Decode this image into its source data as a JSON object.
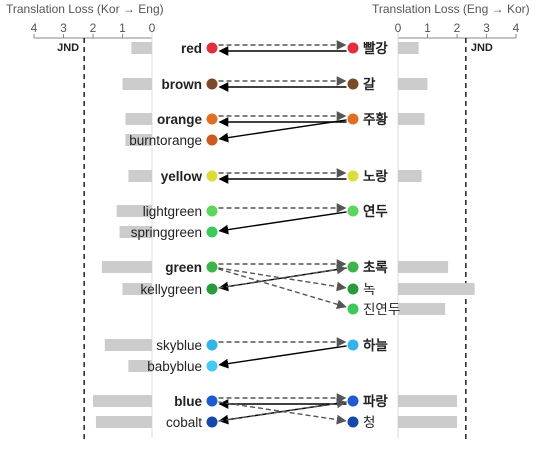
{
  "axes": {
    "left_title": "Translation Loss (Kor → Eng)",
    "right_title": "Translation Loss (Eng → Kor)",
    "left_ticks": [
      "4",
      "3",
      "2",
      "1",
      "0"
    ],
    "right_ticks": [
      "0",
      "1",
      "2",
      "3",
      "4"
    ],
    "jnd_label": "JND",
    "jnd_value": 2.3
  },
  "english_terms": [
    {
      "label": "red",
      "bold": true,
      "color": "#e0303c",
      "loss": 0.7
    },
    {
      "label": "brown",
      "bold": true,
      "color": "#7a4a2a",
      "loss": 1.0
    },
    {
      "label": "orange",
      "bold": true,
      "color": "#e07020",
      "loss": 0.9
    },
    {
      "label": "burntorange",
      "bold": false,
      "color": "#cc5a1e",
      "loss": 0.9
    },
    {
      "label": "yellow",
      "bold": true,
      "color": "#dcdc3a",
      "loss": 0.8
    },
    {
      "label": "lightgreen",
      "bold": false,
      "color": "#5cd65c",
      "loss": 1.2
    },
    {
      "label": "springgreen",
      "bold": false,
      "color": "#3cc85a",
      "loss": 1.1
    },
    {
      "label": "green",
      "bold": true,
      "color": "#3cb44b",
      "loss": 1.7
    },
    {
      "label": "kellygreen",
      "bold": false,
      "color": "#2a9a3a",
      "loss": 1.0
    },
    {
      "label": "skyblue",
      "bold": false,
      "color": "#32b4e6",
      "loss": 1.6
    },
    {
      "label": "babyblue",
      "bold": false,
      "color": "#46c8f0",
      "loss": 0.8
    },
    {
      "label": "blue",
      "bold": true,
      "color": "#1e5ad2",
      "loss": 2.0
    },
    {
      "label": "cobalt",
      "bold": false,
      "color": "#1448aa",
      "loss": 1.9
    }
  ],
  "korean_terms": [
    {
      "label": "빨강",
      "bold": true,
      "color": "#e0303c",
      "loss": 0.7
    },
    {
      "label": "갈",
      "bold": true,
      "color": "#7a4a2a",
      "loss": 1.0
    },
    {
      "label": "주황",
      "bold": true,
      "color": "#e07020",
      "loss": 0.9
    },
    {
      "label": "노랑",
      "bold": true,
      "color": "#dcdc3a",
      "loss": 0.8
    },
    {
      "label": "연두",
      "bold": true,
      "color": "#5cd65c",
      "loss": null
    },
    {
      "label": "초록",
      "bold": true,
      "color": "#3cb44b",
      "loss": 1.7
    },
    {
      "label": "녹",
      "bold": false,
      "color": "#2a9a3a",
      "loss": 2.6
    },
    {
      "label": "진연두",
      "bold": false,
      "color": "#3cc85a",
      "loss": 1.6
    },
    {
      "label": "하늘",
      "bold": true,
      "color": "#32b4e6",
      "loss": null
    },
    {
      "label": "파랑",
      "bold": true,
      "color": "#1e5ad2",
      "loss": 2.0
    },
    {
      "label": "청",
      "bold": false,
      "color": "#1448aa",
      "loss": 2.0
    }
  ],
  "kor_to_eng": [
    {
      "from": "빨강",
      "to": "red"
    },
    {
      "from": "갈",
      "to": "brown"
    },
    {
      "from": "주황",
      "to": "orange"
    },
    {
      "from": "주황",
      "to": "burntorange"
    },
    {
      "from": "노랑",
      "to": "yellow"
    },
    {
      "from": "연두",
      "to": "springgreen"
    },
    {
      "from": "초록",
      "to": "kellygreen"
    },
    {
      "from": "하늘",
      "to": "babyblue"
    },
    {
      "from": "파랑",
      "to": "blue"
    },
    {
      "from": "파랑",
      "to": "cobalt"
    }
  ],
  "eng_to_kor": [
    {
      "from": "red",
      "to": "빨강"
    },
    {
      "from": "brown",
      "to": "갈"
    },
    {
      "from": "orange",
      "to": "주황"
    },
    {
      "from": "yellow",
      "to": "노랑"
    },
    {
      "from": "lightgreen",
      "to": "연두"
    },
    {
      "from": "green",
      "to": "초록"
    },
    {
      "from": "green",
      "to": "녹"
    },
    {
      "from": "green",
      "to": "진연두"
    },
    {
      "from": "kellygreen",
      "to": "초록"
    },
    {
      "from": "skyblue",
      "to": "하늘"
    },
    {
      "from": "blue",
      "to": "파랑"
    },
    {
      "from": "blue",
      "to": "청"
    },
    {
      "from": "cobalt",
      "to": "파랑"
    }
  ]
}
